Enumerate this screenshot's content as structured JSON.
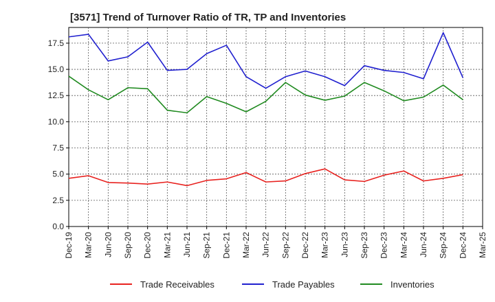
{
  "chart_data": {
    "type": "line",
    "title": "[3571]  Trend of Turnover Ratio of TR, TP and Inventories",
    "xlabel": "",
    "ylabel": "",
    "ylim": [
      0,
      19
    ],
    "yticks": [
      "0.0",
      "2.5",
      "5.0",
      "7.5",
      "10.0",
      "12.5",
      "15.0",
      "17.5"
    ],
    "ytick_values": [
      0,
      2.5,
      5,
      7.5,
      10,
      12.5,
      15,
      17.5
    ],
    "xticks": [
      "Dec-19",
      "Mar-20",
      "Jun-20",
      "Sep-20",
      "Dec-20",
      "Mar-21",
      "Jun-21",
      "Sep-21",
      "Dec-21",
      "Mar-22",
      "Jun-22",
      "Sep-22",
      "Dec-22",
      "Mar-23",
      "Jun-23",
      "Sep-23",
      "Dec-23",
      "Mar-24",
      "Jun-24",
      "Sep-24",
      "Dec-24",
      "Mar-25"
    ],
    "grid": true,
    "legend_position": "bottom",
    "series": [
      {
        "name": "Trade Receivables",
        "color": "#e8211e",
        "x": [
          "Dec-19",
          "Mar-20",
          "Jun-20",
          "Sep-20",
          "Dec-20",
          "Mar-21",
          "Jun-21",
          "Sep-21",
          "Dec-21",
          "Mar-22",
          "Jun-22",
          "Sep-22",
          "Dec-22",
          "Mar-23",
          "Jun-23",
          "Sep-23",
          "Dec-23",
          "Mar-24",
          "Jun-24",
          "Sep-24",
          "Dec-24"
        ],
        "values": [
          4.6,
          4.85,
          4.2,
          4.15,
          4.05,
          4.25,
          3.9,
          4.4,
          4.55,
          5.15,
          4.25,
          4.35,
          5.05,
          5.5,
          4.45,
          4.3,
          4.9,
          5.3,
          4.35,
          4.6,
          4.95
        ]
      },
      {
        "name": "Trade Payables",
        "color": "#1f1fcf",
        "x": [
          "Dec-19",
          "Mar-20",
          "Jun-20",
          "Sep-20",
          "Dec-20",
          "Mar-21",
          "Jun-21",
          "Sep-21",
          "Dec-21",
          "Mar-22",
          "Jun-22",
          "Sep-22",
          "Dec-22",
          "Mar-23",
          "Jun-23",
          "Sep-23",
          "Dec-23",
          "Mar-24",
          "Jun-24",
          "Sep-24",
          "Dec-24"
        ],
        "values": [
          18.1,
          18.35,
          15.8,
          16.2,
          17.6,
          14.9,
          15.0,
          16.5,
          17.3,
          14.3,
          13.2,
          14.3,
          14.85,
          14.3,
          13.45,
          15.35,
          14.9,
          14.7,
          14.1,
          18.5,
          14.2
        ]
      },
      {
        "name": "Inventories",
        "color": "#1f8a1f",
        "x": [
          "Dec-19",
          "Mar-20",
          "Jun-20",
          "Sep-20",
          "Dec-20",
          "Mar-21",
          "Jun-21",
          "Sep-21",
          "Dec-21",
          "Mar-22",
          "Jun-22",
          "Sep-22",
          "Dec-22",
          "Mar-23",
          "Jun-23",
          "Sep-23",
          "Dec-23",
          "Mar-24",
          "Jun-24",
          "Sep-24",
          "Dec-24"
        ],
        "values": [
          14.35,
          13.05,
          12.1,
          13.25,
          13.15,
          11.1,
          10.85,
          12.4,
          11.75,
          10.95,
          11.95,
          13.75,
          12.55,
          12.05,
          12.45,
          13.75,
          12.95,
          12.0,
          12.35,
          13.5,
          12.1
        ]
      }
    ]
  }
}
